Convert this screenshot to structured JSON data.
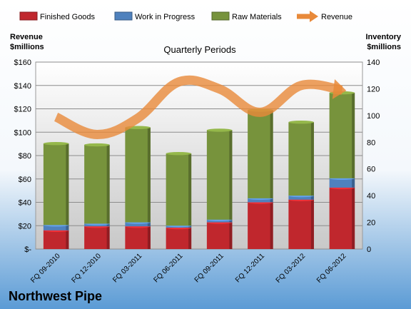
{
  "company": "Northwest Pipe",
  "colors": {
    "finished": "#c0272d",
    "wip": "#4f81bd",
    "raw": "#77933c",
    "revenue": "#e8893a",
    "bg_top": "#ffffff",
    "bg_bottom": "#5b9bd5"
  },
  "chart_data": {
    "type": "bar",
    "title": "Quarterly Periods",
    "left_axis_label": [
      "Revenue",
      "$millions"
    ],
    "right_axis_label": [
      "Inventory",
      "$millions"
    ],
    "categories": [
      "FQ 09-2010",
      "FQ 12-2010",
      "FQ 03-2011",
      "FQ 06-2011",
      "FQ 09-2011",
      "FQ 12-2011",
      "FQ 03-2012",
      "FQ 06-2012"
    ],
    "left_ticks": [
      "$-",
      "$20",
      "$40",
      "$60",
      "$80",
      "$100",
      "$120",
      "$140",
      "$160"
    ],
    "right_ticks": [
      "0",
      "20",
      "40",
      "60",
      "80",
      "100",
      "120",
      "140"
    ],
    "left_ylim": [
      0,
      160
    ],
    "right_ylim": [
      0,
      140
    ],
    "stacked_series_axis": "right",
    "line_series_axis": "left",
    "series": [
      {
        "name": "Finished Goods",
        "kind": "bar",
        "color": "#c0272d",
        "values": [
          14,
          17,
          17,
          16,
          20,
          35,
          37,
          46
        ]
      },
      {
        "name": "Work in Progress",
        "kind": "bar",
        "color": "#4f81bd",
        "values": [
          4,
          2,
          3,
          1.5,
          2,
          3,
          3,
          7
        ]
      },
      {
        "name": "Raw Materials",
        "kind": "bar",
        "color": "#77933c",
        "values": [
          61,
          59,
          71,
          54,
          67,
          66,
          55,
          64
        ]
      },
      {
        "name": "Revenue",
        "kind": "line",
        "color": "#e8893a",
        "values": [
          113,
          98,
          112,
          143,
          137,
          117,
          140,
          136
        ]
      }
    ],
    "legend_position": "top",
    "grid": true
  }
}
